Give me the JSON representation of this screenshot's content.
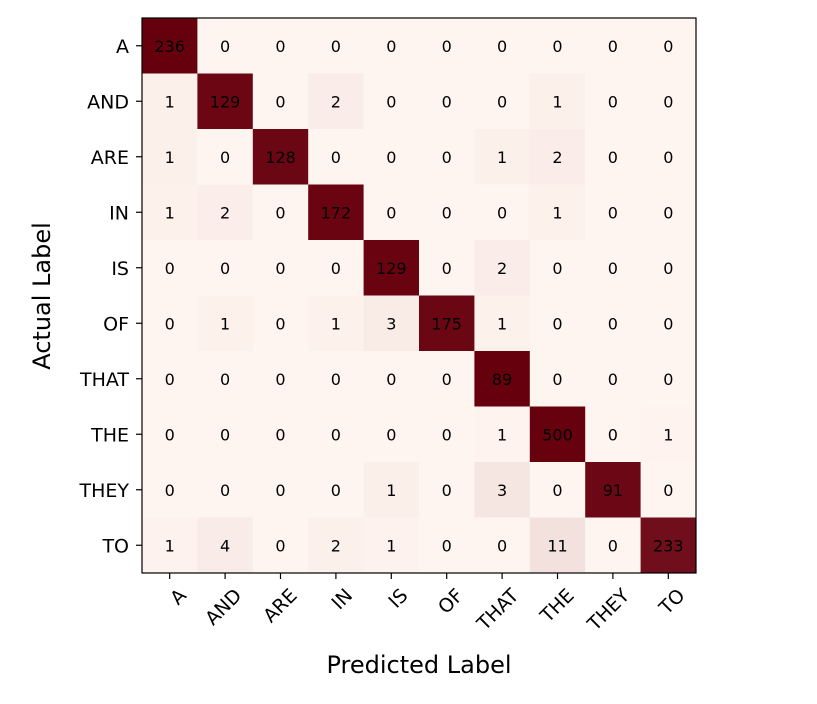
{
  "chart_data": {
    "type": "heatmap",
    "title": "",
    "xlabel": "Predicted Label",
    "ylabel": "Actual Label",
    "x_categories": [
      "A",
      "AND",
      "ARE",
      "IN",
      "IS",
      "OF",
      "THAT",
      "THE",
      "THEY",
      "TO"
    ],
    "y_categories": [
      "A",
      "AND",
      "ARE",
      "IN",
      "IS",
      "OF",
      "THAT",
      "THE",
      "THEY",
      "TO"
    ],
    "values": [
      [
        236,
        0,
        0,
        0,
        0,
        0,
        0,
        0,
        0,
        0
      ],
      [
        1,
        129,
        0,
        2,
        0,
        0,
        0,
        1,
        0,
        0
      ],
      [
        1,
        0,
        128,
        0,
        0,
        0,
        1,
        2,
        0,
        0
      ],
      [
        1,
        2,
        0,
        172,
        0,
        0,
        0,
        1,
        0,
        0
      ],
      [
        0,
        0,
        0,
        0,
        129,
        0,
        2,
        0,
        0,
        0
      ],
      [
        0,
        1,
        0,
        1,
        3,
        175,
        1,
        0,
        0,
        0
      ],
      [
        0,
        0,
        0,
        0,
        0,
        0,
        89,
        0,
        0,
        0
      ],
      [
        0,
        0,
        0,
        0,
        0,
        0,
        1,
        500,
        0,
        1
      ],
      [
        0,
        0,
        0,
        0,
        1,
        0,
        3,
        0,
        91,
        0
      ],
      [
        1,
        4,
        0,
        2,
        1,
        0,
        0,
        11,
        0,
        233
      ]
    ],
    "colormap": {
      "low": "#fff5f0",
      "high": "#67000d",
      "normalization": "row"
    },
    "tick_rotation_x": 45,
    "grid": false,
    "legend": "none"
  }
}
